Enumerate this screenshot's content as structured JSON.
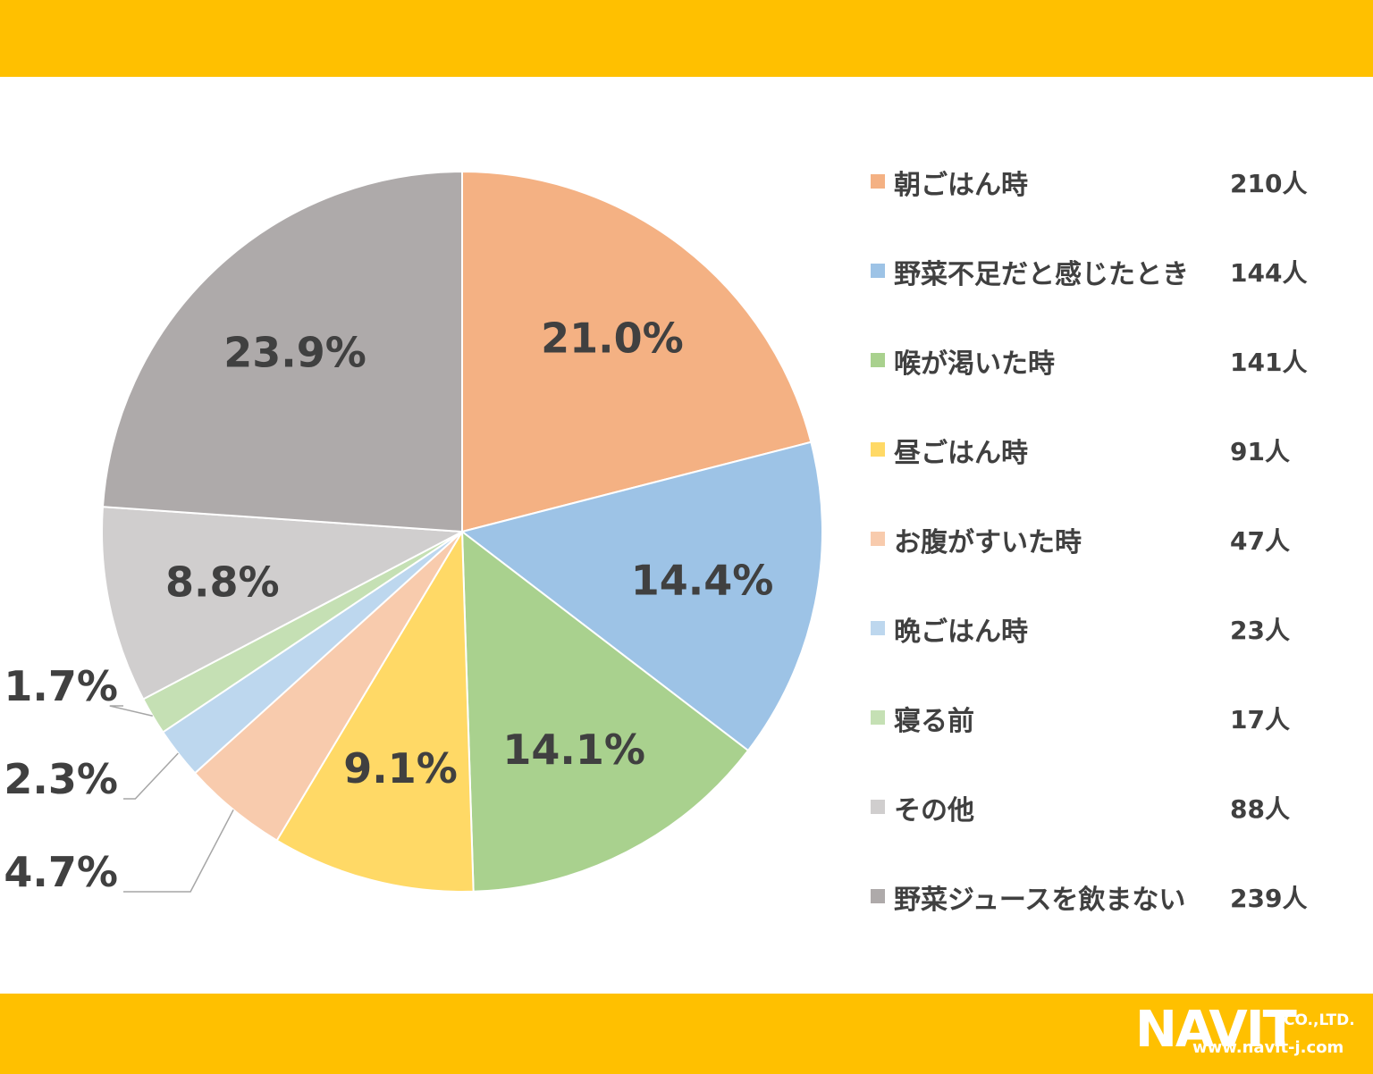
{
  "chart_data": {
    "type": "pie",
    "categories": [
      "朝ごはん時",
      "野菜不足だと感じたとき",
      "喉が渇いた時",
      "昼ごはん時",
      "お腹がすいた時",
      "晩ごはん時",
      "寝る前",
      "その他",
      "野菜ジュースを飲まない"
    ],
    "counts": [
      "210人",
      "144人",
      "141人",
      "91人",
      "47人",
      "23人",
      "17人",
      "88人",
      "239人"
    ],
    "values": [
      21.0,
      14.4,
      14.1,
      9.1,
      4.7,
      2.3,
      1.7,
      8.8,
      23.9
    ],
    "value_labels": [
      "21.0%",
      "14.4%",
      "14.1%",
      "9.1%",
      "4.7%",
      "2.3%",
      "1.7%",
      "8.8%",
      "23.9%"
    ],
    "colors": [
      "#F4B183",
      "#9DC3E6",
      "#A9D18E",
      "#FFD966",
      "#F8CBAD",
      "#BDD7EE",
      "#C5E0B4",
      "#D0CECE",
      "#AEAAAA"
    ],
    "start_angle_deg": 0,
    "direction": "clockwise",
    "legend_position": "right"
  },
  "footer": {
    "logo_name": "NAVIT",
    "logo_suffix": "CO.,LTD.",
    "logo_url": "www.navit-j.com"
  }
}
